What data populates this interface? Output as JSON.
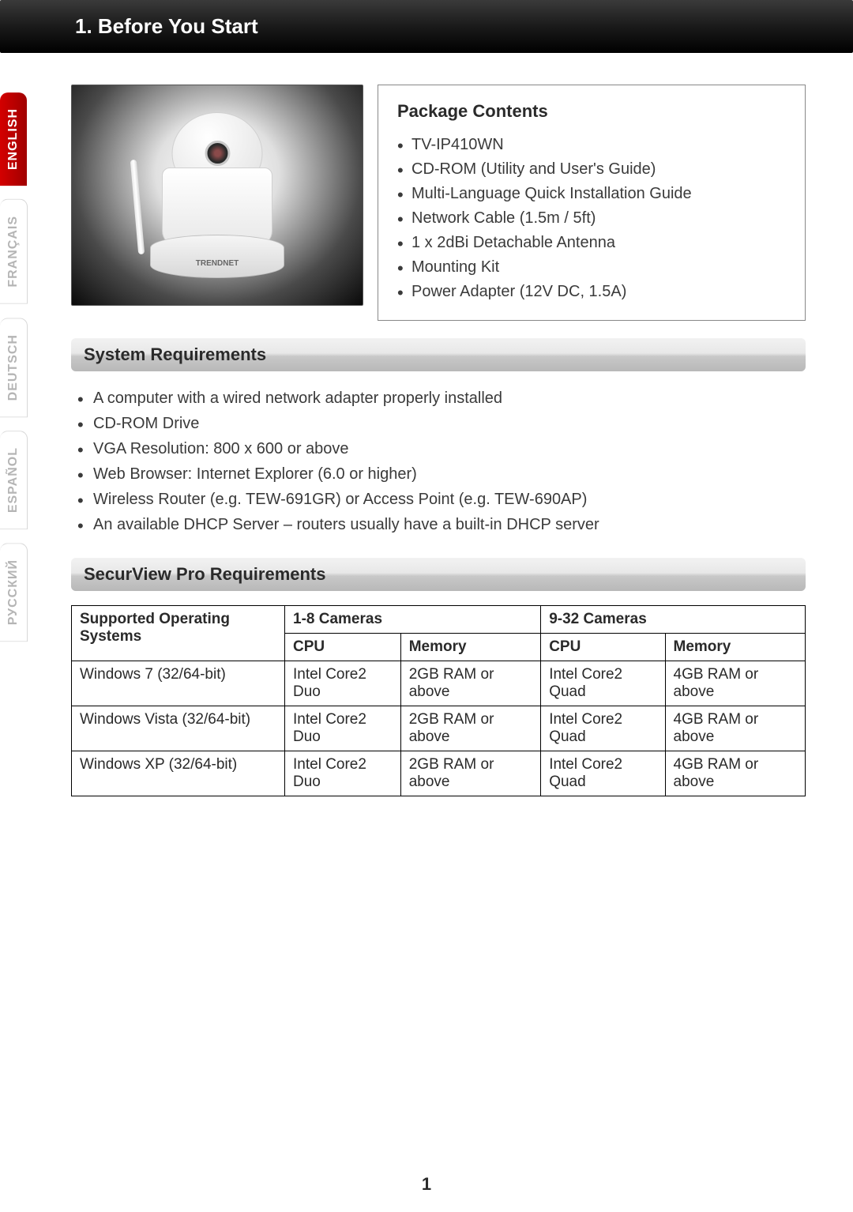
{
  "title": "1. Before You Start",
  "languages": [
    {
      "label": "ENGLISH",
      "active": true
    },
    {
      "label": "FRANÇAIS",
      "active": false
    },
    {
      "label": "DEUTSCH",
      "active": false
    },
    {
      "label": "ESPAÑOL",
      "active": false
    },
    {
      "label": "РУССКИЙ",
      "active": false
    }
  ],
  "product_brand": "TRENDNET",
  "package": {
    "title": "Package Contents",
    "items": [
      "TV-IP410WN",
      "CD-ROM (Utility and User's Guide)",
      "Multi-Language Quick Installation Guide",
      "Network Cable (1.5m / 5ft)",
      "1 x 2dBi Detachable Antenna",
      "Mounting Kit",
      "Power Adapter (12V DC, 1.5A)"
    ]
  },
  "system_requirements": {
    "title": "System Requirements",
    "items": [
      "A computer with a wired network adapter properly installed",
      "CD-ROM Drive",
      "VGA Resolution: 800 x 600 or above",
      "Web Browser: Internet Explorer (6.0 or higher)",
      "Wireless Router (e.g. TEW-691GR) or Access Point (e.g. TEW-690AP)",
      "An available DHCP Server – routers usually have a built-in DHCP server"
    ]
  },
  "securview": {
    "title": "SecurView Pro Requirements",
    "table": {
      "col_os": "Supported Operating Systems",
      "group1": "1-8 Cameras",
      "group2": "9-32 Cameras",
      "sub_cpu": "CPU",
      "sub_mem": "Memory",
      "rows": [
        {
          "os": "Windows 7 (32/64-bit)",
          "cpu1": "Intel Core2 Duo",
          "mem1": "2GB RAM or above",
          "cpu2": "Intel Core2 Quad",
          "mem2": "4GB RAM or above"
        },
        {
          "os": "Windows Vista (32/64-bit)",
          "cpu1": "Intel Core2 Duo",
          "mem1": "2GB RAM or above",
          "cpu2": "Intel Core2 Quad",
          "mem2": "4GB RAM or above"
        },
        {
          "os": "Windows XP (32/64-bit)",
          "cpu1": "Intel Core2 Duo",
          "mem1": "2GB RAM or above",
          "cpu2": "Intel Core2 Quad",
          "mem2": "4GB RAM or above"
        }
      ]
    }
  },
  "page_number": "1",
  "colors": {
    "title_bg_dark": "#000000",
    "active_tab": "#c00000",
    "text": "#2a2a2a",
    "border": "#000000"
  }
}
